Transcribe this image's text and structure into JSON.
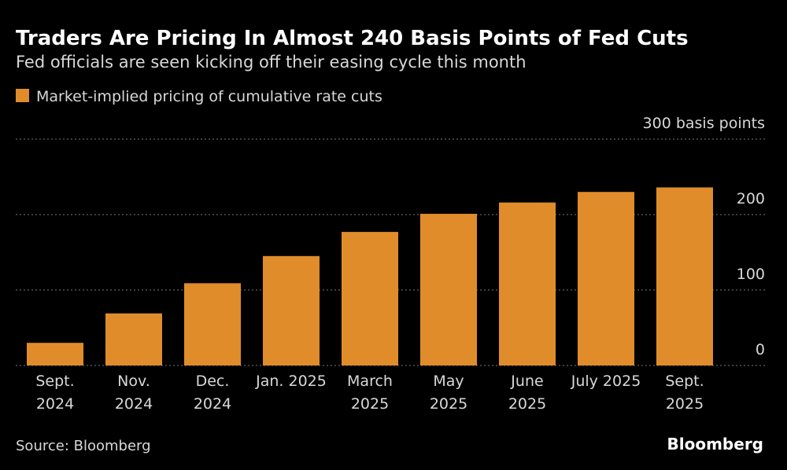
{
  "chart_data": {
    "type": "bar",
    "title": "Traders Are Pricing In Almost 240 Basis Points of Fed Cuts",
    "subtitle": "Fed officials are seen kicking off their easing cycle this month",
    "series": [
      {
        "name": "Market-implied pricing of cumulative rate cuts",
        "color": "#e08c2a",
        "values": [
          30,
          69,
          109,
          145,
          177,
          201,
          216,
          230,
          236
        ]
      }
    ],
    "categories": [
      "Sept. 2024",
      "Nov. 2024",
      "Dec. 2024",
      "Jan. 2025",
      "March 2025",
      "May 2025",
      "June 2025",
      "July 2025",
      "Sept. 2025"
    ],
    "ylim": [
      0,
      300
    ],
    "yticks": [
      0,
      100,
      200,
      {
        "value": 300,
        "label": "300 basis points"
      }
    ],
    "grid": true,
    "source": "Source: Bloomberg",
    "brand": "Bloomberg"
  }
}
